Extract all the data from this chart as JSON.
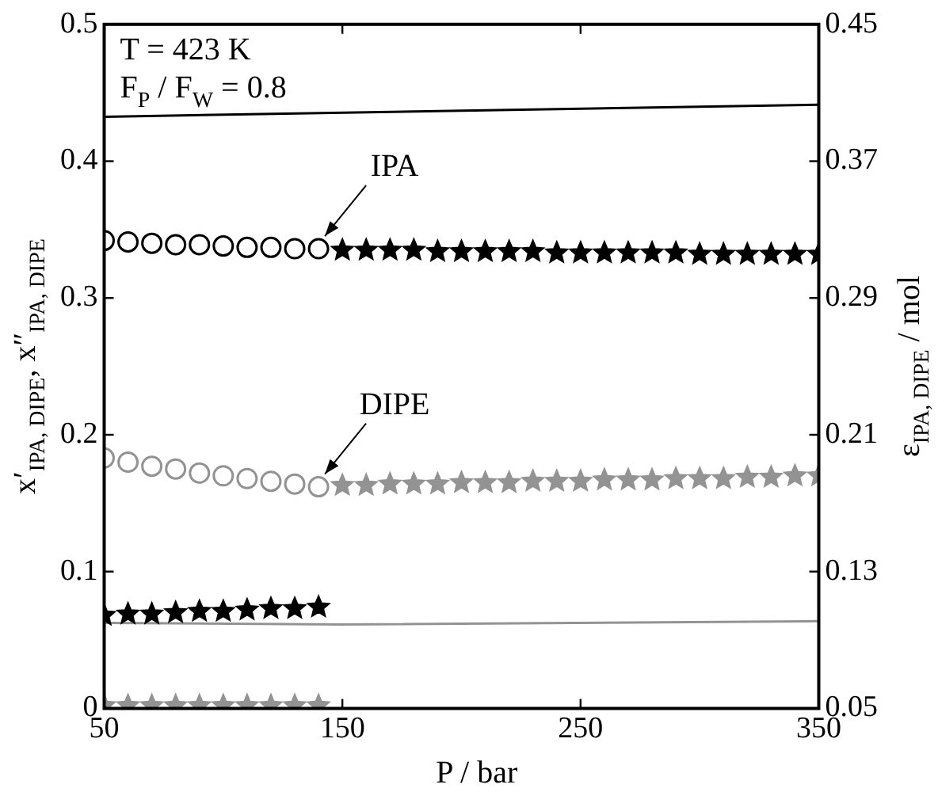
{
  "chart_data": {
    "type": "scatter",
    "xlabel": "P / bar",
    "ylabel": "x′$_{IPA, DIPE}$, x″$_{IPA, DIPE}$",
    "y2label": "ε$_{IPA, DIPE}$ / mol",
    "xlim": [
      50,
      350
    ],
    "xticks": [
      50,
      150,
      250,
      350
    ],
    "ylim": [
      0,
      0.5
    ],
    "yticks": [
      0,
      0.1,
      0.2,
      0.3,
      0.4,
      0.5
    ],
    "y2lim": [
      0.05,
      0.45
    ],
    "y2ticks": [
      0.05,
      0.13,
      0.21,
      0.29,
      0.37,
      0.45
    ],
    "grid": false,
    "legend": false,
    "annotations": [
      "T = 423 K",
      "F$_{P}$ / F$_{W}$ = 0.8",
      {
        "text": "IPA",
        "x": 140,
        "y": 0.336
      },
      {
        "text": "DIPE",
        "x": 140,
        "y": 0.162
      }
    ],
    "series": [
      {
        "marker": "circle",
        "color": "#000000",
        "x": [
          50,
          60,
          70,
          80,
          90,
          100,
          110,
          120,
          130,
          140
        ],
        "values": [
          0.342,
          0.341,
          0.34,
          0.339,
          0.339,
          0.338,
          0.337,
          0.337,
          0.336,
          0.336
        ]
      },
      {
        "marker": "star",
        "color": "#000000",
        "x": [
          150,
          160,
          170,
          180,
          190,
          200,
          210,
          220,
          230,
          240,
          250,
          260,
          270,
          280,
          290,
          300,
          310,
          320,
          330,
          340,
          350
        ],
        "values": [
          0.335,
          0.335,
          0.335,
          0.335,
          0.334,
          0.334,
          0.334,
          0.334,
          0.334,
          0.333,
          0.333,
          0.333,
          0.333,
          0.333,
          0.333,
          0.332,
          0.332,
          0.332,
          0.332,
          0.332,
          0.332
        ]
      },
      {
        "marker": "circle",
        "color": "#939393",
        "x": [
          50,
          60,
          70,
          80,
          90,
          100,
          110,
          120,
          130,
          140
        ],
        "values": [
          0.183,
          0.18,
          0.177,
          0.175,
          0.172,
          0.17,
          0.168,
          0.166,
          0.164,
          0.162
        ]
      },
      {
        "marker": "star",
        "color": "#939393",
        "x": [
          150,
          160,
          170,
          180,
          190,
          200,
          210,
          220,
          230,
          240,
          250,
          260,
          270,
          280,
          290,
          300,
          310,
          320,
          330,
          340,
          350
        ],
        "values": [
          0.163,
          0.163,
          0.164,
          0.164,
          0.164,
          0.165,
          0.165,
          0.165,
          0.166,
          0.166,
          0.166,
          0.167,
          0.167,
          0.167,
          0.168,
          0.168,
          0.168,
          0.169,
          0.169,
          0.17,
          0.17
        ]
      },
      {
        "marker": "star",
        "color": "#000000",
        "x": [
          50,
          60,
          70,
          80,
          90,
          100,
          110,
          120,
          130,
          140
        ],
        "values": [
          0.068,
          0.069,
          0.069,
          0.07,
          0.071,
          0.071,
          0.072,
          0.073,
          0.073,
          0.074
        ]
      },
      {
        "marker": "star",
        "color": "#939393",
        "x": [
          50,
          60,
          70,
          80,
          90,
          100,
          110,
          120,
          130,
          140
        ],
        "values": [
          0.002,
          0.002,
          0.002,
          0.002,
          0.002,
          0.002,
          0.002,
          0.002,
          0.002,
          0.002
        ]
      },
      {
        "type": "line",
        "marker": "none",
        "axis": "y2",
        "color": "#000000",
        "x": [
          50,
          350
        ],
        "values": [
          0.396,
          0.403
        ]
      },
      {
        "type": "line",
        "marker": "none",
        "axis": "y2",
        "color": "#939393",
        "x": [
          50,
          150,
          350
        ],
        "values": [
          0.1,
          0.099,
          0.101
        ]
      }
    ]
  }
}
